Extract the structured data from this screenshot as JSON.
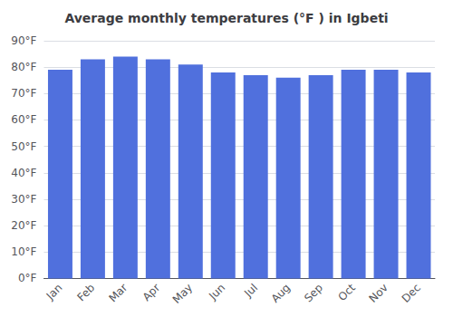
{
  "chart_data": {
    "type": "bar",
    "title": "Average monthly temperatures (°F ) in Igbeti",
    "categories": [
      "Jan",
      "Feb",
      "Mar",
      "Apr",
      "May",
      "Jun",
      "Jul",
      "Aug",
      "Sep",
      "Oct",
      "Nov",
      "Dec"
    ],
    "values": [
      79,
      83,
      84,
      83,
      81,
      78,
      77,
      76,
      77,
      79,
      79,
      78
    ],
    "ylim": [
      0,
      90
    ],
    "yticks": [
      {
        "value": 0,
        "label": "0°F"
      },
      {
        "value": 10,
        "label": "10°F"
      },
      {
        "value": 20,
        "label": "20°F"
      },
      {
        "value": 30,
        "label": "30°F"
      },
      {
        "value": 40,
        "label": "40°F"
      },
      {
        "value": 50,
        "label": "50°F"
      },
      {
        "value": 60,
        "label": "60°F"
      },
      {
        "value": 70,
        "label": "70°F"
      },
      {
        "value": 80,
        "label": "80°F"
      },
      {
        "value": 90,
        "label": "90°F"
      }
    ],
    "grid": true
  }
}
